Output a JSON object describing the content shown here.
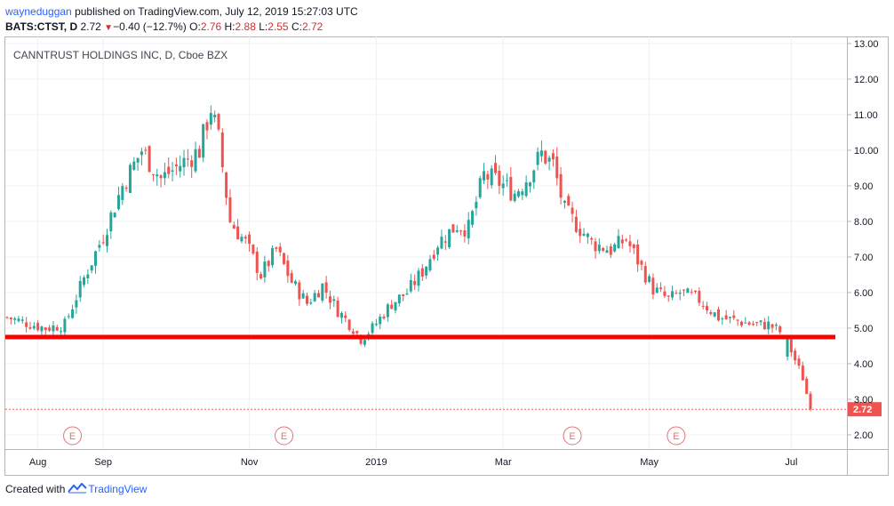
{
  "header": {
    "user": "wayneduggan",
    "published_text": "published on TradingView.com, July 12, 2019 15:27:03 UTC",
    "symbol": "BATS:CTST, D",
    "price": "2.72",
    "change": "−0.40 (−12.7%)",
    "o_label": "O:",
    "o_value": "2.76",
    "h_label": "H:",
    "h_value": "2.88",
    "l_label": "L:",
    "l_value": "2.55",
    "c_label": "C:",
    "c_value": "2.72"
  },
  "footer": {
    "created_with": "Created with",
    "brand": "TradingView"
  },
  "colors": {
    "up": "#26a69a",
    "down": "#ef5350",
    "support": "#ff0000",
    "accent": "#2962ff",
    "earnings": "#e57373"
  },
  "chart_data": {
    "type": "candlestick",
    "title": "CANNTRUST HOLDINGS INC, D, Cboe BZX",
    "ylim": [
      1.6,
      13.2
    ],
    "y_ticks": [
      "13.00",
      "12.00",
      "11.00",
      "10.00",
      "9.00",
      "8.00",
      "7.00",
      "6.00",
      "5.00",
      "4.00",
      "3.00",
      "2.00"
    ],
    "x_ticks": [
      {
        "label": "Aug",
        "index": 8
      },
      {
        "label": "Sep",
        "index": 25
      },
      {
        "label": "Nov",
        "index": 63
      },
      {
        "label": "2019",
        "index": 96
      },
      {
        "label": "Mar",
        "index": 129
      },
      {
        "label": "May",
        "index": 167
      },
      {
        "label": "Jul",
        "index": 203
      }
    ],
    "last_price_label": "2.72",
    "last_price": 2.72,
    "support_level": 4.75,
    "earnings_marker_label": "E",
    "earnings_indices": [
      17,
      72,
      147,
      174
    ],
    "grid": true,
    "legend": "none",
    "anchors": [
      [
        0,
        5.3
      ],
      [
        10,
        5.0
      ],
      [
        15,
        5.1
      ],
      [
        20,
        6.4
      ],
      [
        25,
        7.6
      ],
      [
        30,
        9.0
      ],
      [
        35,
        10.0
      ],
      [
        40,
        9.2
      ],
      [
        45,
        9.6
      ],
      [
        50,
        10.0
      ],
      [
        53,
        11.2
      ],
      [
        55,
        10.3
      ],
      [
        58,
        8.0
      ],
      [
        62,
        7.4
      ],
      [
        66,
        6.5
      ],
      [
        70,
        7.2
      ],
      [
        74,
        6.3
      ],
      [
        78,
        5.7
      ],
      [
        82,
        6.2
      ],
      [
        86,
        5.5
      ],
      [
        90,
        5.0
      ],
      [
        92,
        4.7
      ],
      [
        95,
        5.0
      ],
      [
        100,
        5.7
      ],
      [
        104,
        6.0
      ],
      [
        108,
        6.6
      ],
      [
        112,
        7.4
      ],
      [
        117,
        7.9
      ],
      [
        120,
        7.8
      ],
      [
        124,
        9.3
      ],
      [
        128,
        9.1
      ],
      [
        132,
        8.8
      ],
      [
        135,
        9.2
      ],
      [
        139,
        9.9
      ],
      [
        142,
        9.6
      ],
      [
        145,
        8.3
      ],
      [
        149,
        7.8
      ],
      [
        152,
        7.4
      ],
      [
        157,
        7.2
      ],
      [
        161,
        7.5
      ],
      [
        165,
        6.7
      ],
      [
        168,
        6.1
      ],
      [
        172,
        5.8
      ],
      [
        175,
        6.0
      ],
      [
        180,
        5.8
      ],
      [
        185,
        5.3
      ],
      [
        190,
        5.2
      ],
      [
        194,
        5.1
      ],
      [
        198,
        5.1
      ],
      [
        201,
        4.9
      ],
      [
        204,
        4.1
      ],
      [
        206,
        3.6
      ],
      [
        208,
        2.72
      ]
    ],
    "n_candles": 209,
    "gap_after_index": 201
  }
}
